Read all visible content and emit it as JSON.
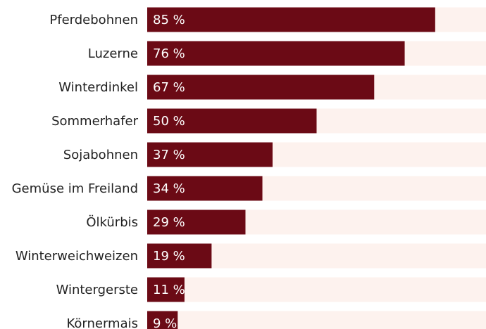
{
  "chart_data": {
    "type": "bar",
    "orientation": "horizontal",
    "categories": [
      "Pferdebohnen",
      "Luzerne",
      "Winterdinkel",
      "Sommerhafer",
      "Sojabohnen",
      "Gemüse im Freiland",
      "Ölkürbis",
      "Winterweichweizen",
      "Wintergerste",
      "Körnermais"
    ],
    "values": [
      85,
      76,
      67,
      50,
      37,
      34,
      29,
      19,
      11,
      9
    ],
    "value_labels": [
      "85 %",
      "76 %",
      "67 %",
      "50 %",
      "37 %",
      "34 %",
      "29 %",
      "19 %",
      "11 %",
      "9 %"
    ],
    "color": "#6b0a15",
    "track_color": "#fdf2ee",
    "xlim": [
      0,
      100
    ]
  }
}
